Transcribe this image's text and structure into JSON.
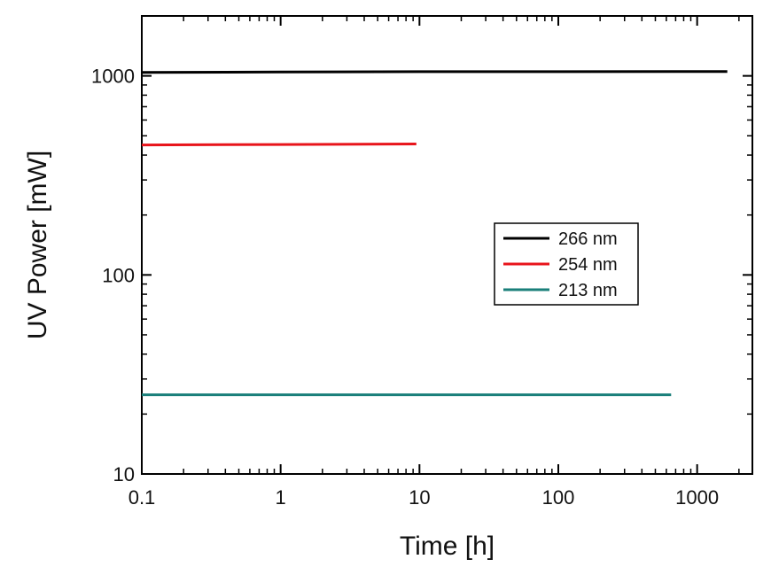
{
  "chart_data": {
    "type": "line",
    "title": "",
    "xlabel": "Time [h]",
    "ylabel": "UV Power [mW]",
    "xscale": "log",
    "yscale": "log",
    "xlim": [
      0.1,
      2500
    ],
    "ylim": [
      10,
      2000
    ],
    "x_ticks": [
      0.1,
      1,
      10,
      100,
      1000
    ],
    "x_tick_labels": [
      "0.1",
      "1",
      "10",
      "100",
      "1000"
    ],
    "y_ticks": [
      10,
      100,
      1000
    ],
    "y_tick_labels": [
      "10",
      "100",
      "1000"
    ],
    "grid": false,
    "legend_position": "center-right",
    "series": [
      {
        "name": "266 nm",
        "color": "#000000",
        "x": [
          0.1,
          1,
          10,
          100,
          1000,
          1650
        ],
        "y": [
          1040,
          1045,
          1050,
          1050,
          1052,
          1052
        ]
      },
      {
        "name": "254 nm",
        "color": "#e8141b",
        "x": [
          0.1,
          1,
          9.5
        ],
        "y": [
          450,
          452,
          455
        ]
      },
      {
        "name": "213 nm",
        "color": "#1a7f7a",
        "x": [
          0.1,
          1,
          10,
          100,
          650
        ],
        "y": [
          25,
          25,
          25,
          25,
          25
        ]
      }
    ]
  }
}
